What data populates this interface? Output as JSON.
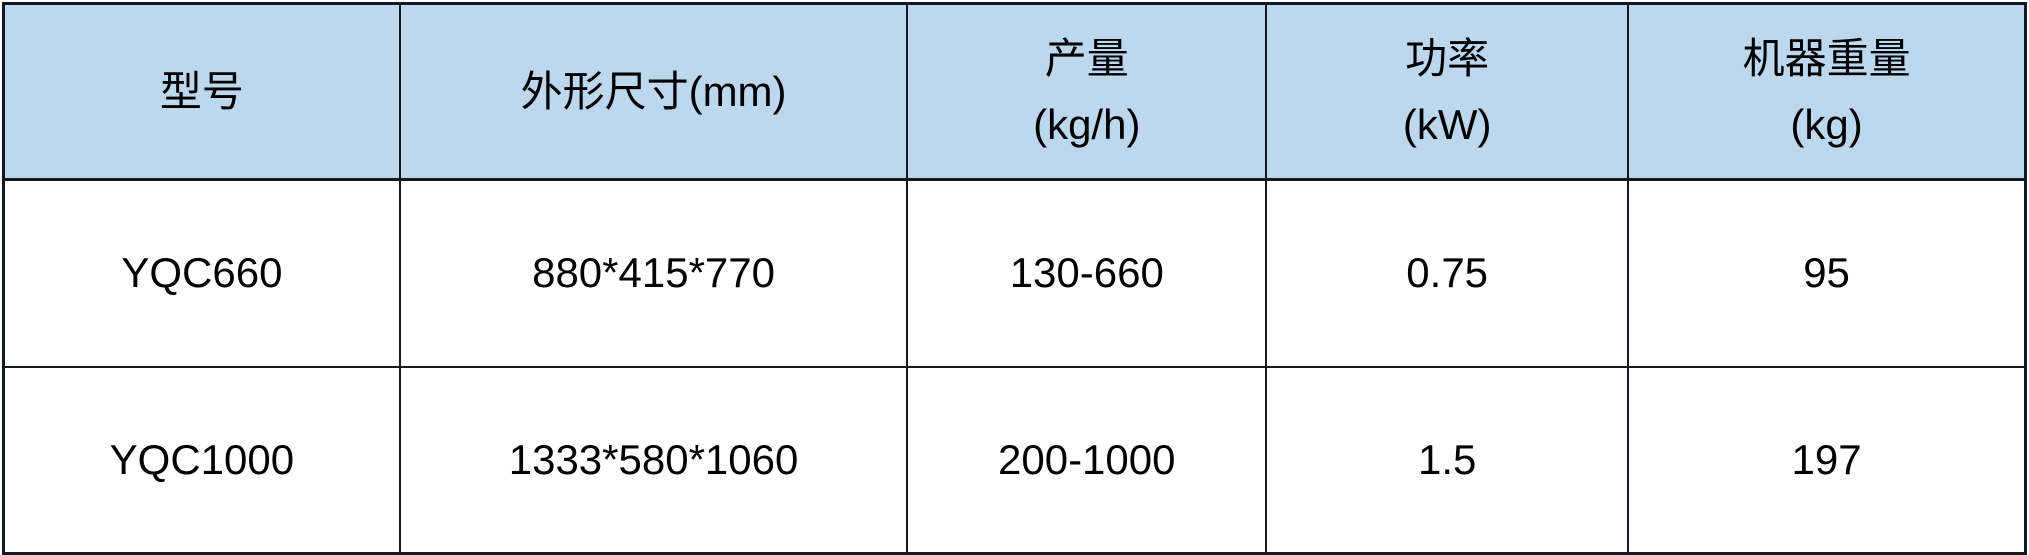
{
  "colors": {
    "header_bg": "#bdd7ee",
    "border": "#14181f",
    "text": "#000000",
    "page_bg": "#ffffff"
  },
  "table": {
    "headers": [
      "型号",
      "外形尺寸(mm)",
      "产量\n(kg/h)",
      "功率\n(kW)",
      "机器重量\n(kg)"
    ],
    "rows": [
      [
        "YQC660",
        "880*415*770",
        "130-660",
        "0.75",
        "95"
      ],
      [
        "YQC1000",
        "1333*580*1060",
        "200-1000",
        "1.5",
        "197"
      ]
    ]
  }
}
